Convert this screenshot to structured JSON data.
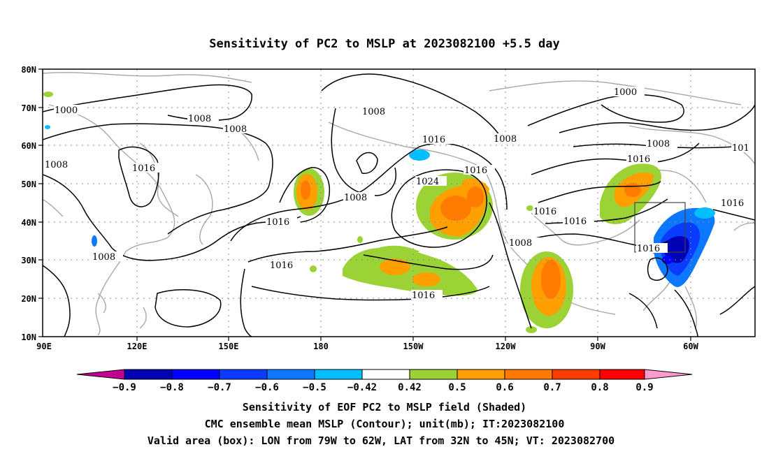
{
  "title": "Sensitivity of PC2 to MSLP at 2023082100 +5.5 day",
  "lat_labels": [
    "80N",
    "70N",
    "60N",
    "50N",
    "40N",
    "30N",
    "20N",
    "10N"
  ],
  "lon_labels": [
    "90E",
    "120E",
    "150E",
    "180",
    "150W",
    "120W",
    "90W",
    "60W"
  ],
  "contour_labels": [
    "1000",
    "1008",
    "1008",
    "1000",
    "1008",
    "1016",
    "1008",
    "1008",
    "1016",
    "1016",
    "1008",
    "1016",
    "1024",
    "1016",
    "1016",
    "1008",
    "1016",
    "1016",
    "1008",
    "1016",
    "1008",
    "1016",
    "1016",
    "101"
  ],
  "colorbar": {
    "labels": [
      "−0.9",
      "−0.8",
      "−0.7",
      "−0.6",
      "−0.5",
      "−0.42",
      "0.42",
      "0.5",
      "0.6",
      "0.7",
      "0.8",
      "0.9"
    ],
    "colors": [
      "#c3008f",
      "#0000b4",
      "#0000ff",
      "#0a3cff",
      "#0b78ff",
      "#00beff",
      "#ffffff",
      "#9bd336",
      "#ff9f00",
      "#ff7a00",
      "#ff3c00",
      "#ff0000",
      "#ff9bcd"
    ]
  },
  "valid_box": {
    "lon_w": "79W",
    "lon_e": "62W",
    "lat_s": "32N",
    "lat_n": "45N"
  },
  "footer": {
    "line1": "Sensitivity of EOF PC2 to MSLP field (Shaded)",
    "line2": "CMC ensemble mean MSLP (Contour); unit(mb); IT:2023082100",
    "line3": "Valid area (box): LON from 79W to 62W, LAT from 32N to 45N; VT: 2023082700"
  }
}
